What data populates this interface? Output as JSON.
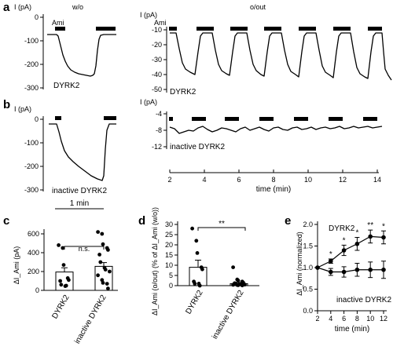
{
  "panels": {
    "a": {
      "letter": "a",
      "ylabel": "I (pA)",
      "cond_left": "w/o",
      "cond_right": "o/out",
      "ami": "Ami",
      "trace_label": "DYRK2",
      "left_ticks": [
        "0",
        "-100",
        "-200",
        "-300"
      ],
      "right_ticks": [
        "-10",
        "-20",
        "-30",
        "-40",
        "-50"
      ]
    },
    "b": {
      "letter": "b",
      "ylabel": "I (pA)",
      "trace_label": "inactive DYRK2",
      "left_ticks": [
        "0",
        "-100",
        "-200",
        "-300"
      ],
      "right_ticks": [
        "-4",
        "-8",
        "-12"
      ],
      "x_ticks": [
        "2",
        "4",
        "6",
        "8",
        "10",
        "12",
        "14"
      ],
      "x_title": "time (min)",
      "scale_bar": "1 min"
    },
    "c": {
      "letter": "c",
      "ylabel": "ΔI_Ami (pA)",
      "ticks": [
        "0",
        "200",
        "400",
        "600"
      ],
      "sig": "n.s.",
      "categories": [
        "DYRK2",
        "inactive DYRK2"
      ]
    },
    "d": {
      "letter": "d",
      "ylabel": "ΔI_Ami (o/out) (% of ΔI_Ami (w/o))",
      "ticks": [
        "0",
        "5",
        "10",
        "15",
        "20",
        "25",
        "30"
      ],
      "sig": "**",
      "categories": [
        "DYRK2",
        "inactive DYRK2"
      ]
    },
    "e": {
      "letter": "e",
      "ylabel": "ΔI_Ami (normalized)",
      "ticks": [
        "0.0",
        "0.5",
        "1.0",
        "1.5",
        "2.0"
      ],
      "x_ticks": [
        "2",
        "4",
        "6",
        "8",
        "10",
        "12"
      ],
      "x_title": "time (min)",
      "series_a": "DYRK2",
      "series_b": "inactive DYRK2",
      "stars": [
        "*",
        "*",
        "*",
        "**",
        "*"
      ]
    }
  },
  "chart_data": [
    {
      "type": "bar",
      "panel": "c",
      "categories": [
        "DYRK2",
        "inactive DYRK2"
      ],
      "values": [
        195,
        255
      ],
      "errors": [
        45,
        40
      ],
      "ylim": [
        0,
        650
      ],
      "points": [
        [
          480,
          450,
          270,
          130,
          110,
          100,
          60,
          45,
          50
        ],
        [
          620,
          600,
          490,
          450,
          430,
          380,
          300,
          240,
          220,
          200,
          160,
          110,
          80,
          70,
          20
        ]
      ],
      "annotation": "n.s."
    },
    {
      "type": "bar",
      "panel": "d",
      "categories": [
        "DYRK2",
        "inactive DYRK2"
      ],
      "values": [
        9,
        1
      ],
      "errors": [
        3.5,
        0.5
      ],
      "ylim": [
        0,
        30
      ],
      "points": [
        [
          28,
          22,
          16,
          9,
          8,
          2,
          1,
          1,
          0
        ],
        [
          9,
          3,
          2.5,
          2,
          1.5,
          1.2,
          1,
          0.8,
          0.6,
          0.5,
          0.4,
          0.3,
          0.2,
          0.1
        ]
      ],
      "annotation": "**"
    },
    {
      "type": "line",
      "panel": "e",
      "x": [
        2,
        4,
        6,
        8,
        10,
        12
      ],
      "series": [
        {
          "name": "DYRK2",
          "values": [
            1.0,
            1.15,
            1.4,
            1.55,
            1.72,
            1.7
          ],
          "errors": [
            0,
            0.05,
            0.12,
            0.15,
            0.15,
            0.15
          ]
        },
        {
          "name": "inactive DYRK2",
          "values": [
            1.0,
            0.9,
            0.9,
            0.95,
            0.95,
            0.95
          ],
          "errors": [
            0,
            0.08,
            0.12,
            0.15,
            0.18,
            0.2
          ]
        }
      ],
      "xlim": [
        2,
        12
      ],
      "ylim": [
        0,
        2.0
      ],
      "xlabel": "time (min)",
      "ylabel": "ΔI_Ami (normalized)"
    }
  ]
}
